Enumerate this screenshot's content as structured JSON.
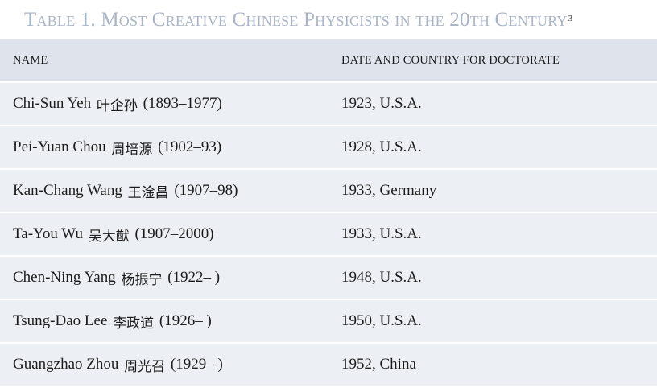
{
  "title": {
    "text": "Table 1. Most Creative Chinese Physicists in the 20th Century",
    "footnote": "3"
  },
  "table": {
    "headers": [
      "NAME",
      "DATE AND COUNTRY FOR DOCTORATE"
    ],
    "rows": [
      {
        "name": "Chi-Sun Yeh",
        "chinese": "叶企孙",
        "years": "(1893–1977)",
        "doctorate": "1923, U.S.A."
      },
      {
        "name": "Pei-Yuan Chou",
        "chinese": "周培源",
        "years": "(1902–93)",
        "doctorate": "1928, U.S.A."
      },
      {
        "name": "Kan-Chang Wang",
        "chinese": "王淦昌",
        "years": "(1907–98)",
        "doctorate": "1933, Germany"
      },
      {
        "name": "Ta-You Wu",
        "chinese": "吴大猷",
        "years": "(1907–2000)",
        "doctorate": "1933, U.S.A."
      },
      {
        "name": "Chen-Ning Yang",
        "chinese": "杨振宁",
        "years": "(1922– )",
        "doctorate": "1948, U.S.A."
      },
      {
        "name": "Tsung-Dao Lee",
        "chinese": "李政道",
        "years": "(1926– )",
        "doctorate": "1950, U.S.A."
      },
      {
        "name": "Guangzhao Zhou",
        "chinese": "周光召",
        "years": "(1929– )",
        "doctorate": "1952, China"
      }
    ]
  },
  "colors": {
    "title": "#a9b4c7",
    "header_bg": "#dfe4ec",
    "row_bg": "#eceff4",
    "text": "#1c1c1c"
  }
}
